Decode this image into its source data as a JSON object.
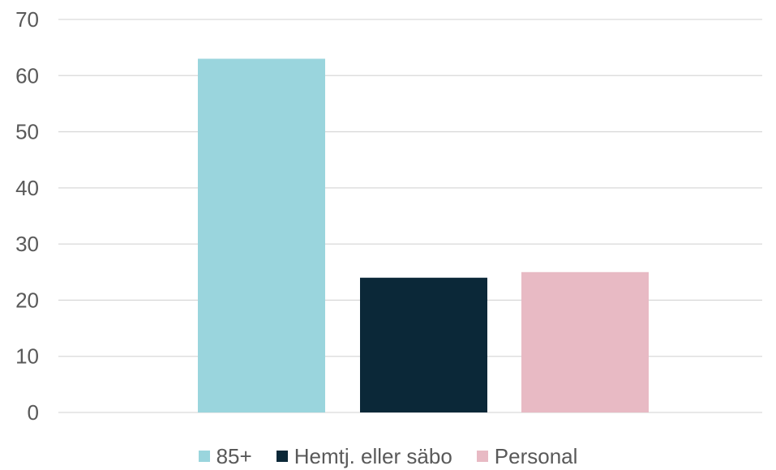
{
  "chart_data": {
    "type": "bar",
    "title": "",
    "xlabel": "",
    "ylabel": "",
    "ylim": [
      0,
      70
    ],
    "yticks": [
      0,
      10,
      20,
      30,
      40,
      50,
      60,
      70
    ],
    "grid": true,
    "legend_position": "bottom",
    "series": [
      {
        "name": "85+",
        "value": 63,
        "color": "#9ad5dd"
      },
      {
        "name": "Hemtj. eller säbo",
        "value": 24,
        "color": "#0b2838"
      },
      {
        "name": "Personal",
        "value": 25,
        "color": "#e8bac4"
      }
    ]
  }
}
